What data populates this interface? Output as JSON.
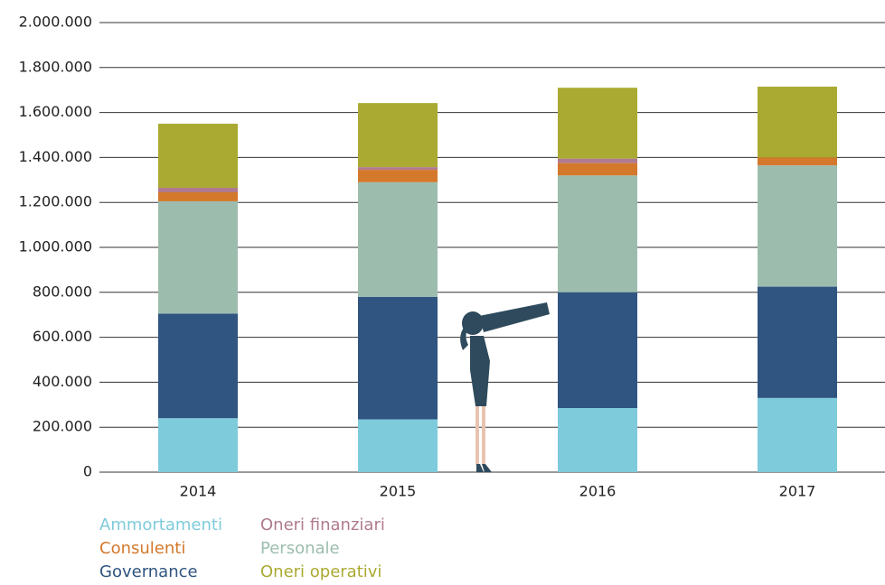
{
  "chart_data": {
    "type": "stacked_bar",
    "categories": [
      "2014",
      "2015",
      "2016",
      "2017"
    ],
    "series": [
      {
        "name": "Ammortamenti",
        "color": "#7ecbdb",
        "values": [
          240000,
          235000,
          285000,
          330000
        ]
      },
      {
        "name": "Governance",
        "color": "#2f5580",
        "values": [
          465000,
          545000,
          515000,
          495000
        ]
      },
      {
        "name": "Personale",
        "color": "#9cbdae",
        "values": [
          500000,
          510000,
          520000,
          540000
        ]
      },
      {
        "name": "Consulenti",
        "color": "#d4782b",
        "values": [
          40000,
          55000,
          55000,
          35000
        ]
      },
      {
        "name": "Oneri finanziari",
        "color": "#b07a8e",
        "values": [
          20000,
          12000,
          20000,
          0
        ]
      },
      {
        "name": "Oneri operativi",
        "color": "#aaaa33",
        "values": [
          285000,
          285000,
          315000,
          315000
        ]
      }
    ],
    "ylim": [
      0,
      2000000
    ],
    "yticks": [
      0,
      {
        "value": 200000,
        "label": "200.000"
      },
      {
        "value": 400000,
        "label": "400.000"
      },
      {
        "value": 600000,
        "label": "600.000"
      },
      {
        "value": 800000,
        "label": "800.000"
      },
      {
        "value": 1000000,
        "label": "1.000.000"
      },
      {
        "value": 1200000,
        "label": "1.200.000"
      },
      {
        "value": 1400000,
        "label": "1.400.000"
      },
      {
        "value": 1600000,
        "label": "1.600.000"
      },
      {
        "value": 1800000,
        "label": "1.800.000"
      },
      {
        "value": 2000000,
        "label": "2.000.000"
      }
    ],
    "grid": true
  }
}
